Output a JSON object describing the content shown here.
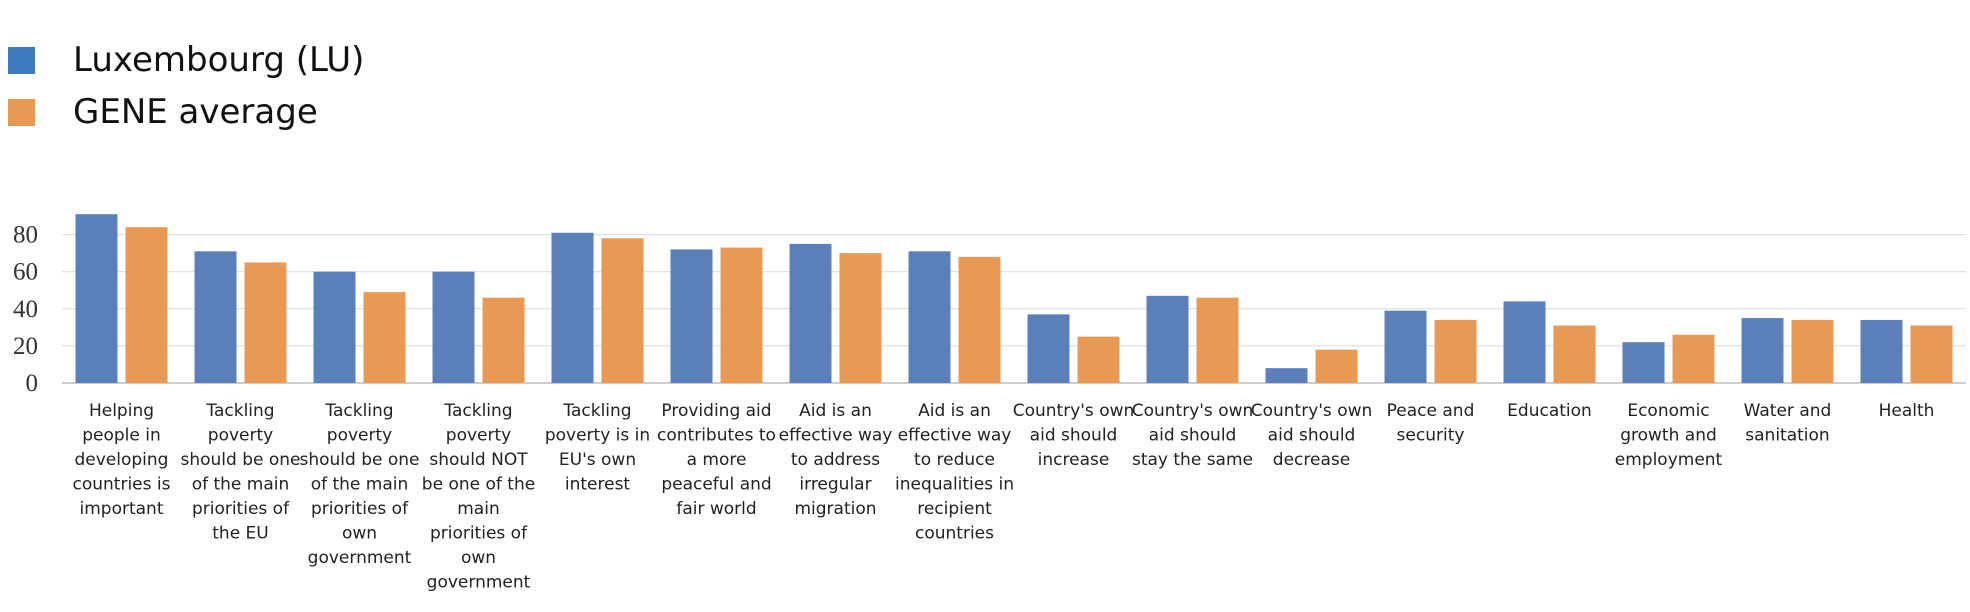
{
  "chart_data": {
    "type": "bar",
    "categories": [
      [
        "Helping",
        "people in",
        "developing",
        "countries is",
        "important"
      ],
      [
        "Tackling",
        "poverty",
        "should be one",
        "of the main",
        "priorities of",
        "the EU"
      ],
      [
        "Tackling",
        "poverty",
        "should be one",
        "of the main",
        "priorities of",
        "own",
        "government"
      ],
      [
        "Tackling",
        "poverty",
        "should NOT",
        "be one of the",
        "main",
        "priorities of",
        "own",
        "government"
      ],
      [
        "Tackling",
        "poverty is in",
        "EU's own",
        "interest"
      ],
      [
        "Providing aid",
        "contributes to",
        "a more",
        "peaceful and",
        "fair world"
      ],
      [
        "Aid is an",
        "effective way",
        "to address",
        "irregular",
        "migration"
      ],
      [
        "Aid is an",
        "effective way",
        "to reduce",
        "inequalities in",
        "recipient",
        "countries"
      ],
      [
        "Country's own",
        "aid should",
        "increase"
      ],
      [
        "Country's own",
        "aid should",
        "stay the same"
      ],
      [
        "Country's own",
        "aid should",
        "decrease"
      ],
      [
        "Peace and",
        "security"
      ],
      [
        "Education"
      ],
      [
        "Economic",
        "growth and",
        "employment"
      ],
      [
        "Water and",
        "sanitation"
      ],
      [
        "Health"
      ]
    ],
    "series": [
      {
        "name": "Luxembourg (LU)",
        "color": "#5b80b9",
        "values": [
          91,
          71,
          60,
          60,
          81,
          72,
          75,
          71,
          37,
          47,
          8,
          39,
          44,
          22,
          35,
          34
        ]
      },
      {
        "name": "GENE average",
        "color": "#e89a54",
        "values": [
          84,
          65,
          49,
          46,
          78,
          73,
          70,
          68,
          25,
          46,
          18,
          34,
          31,
          26,
          34,
          31
        ]
      }
    ],
    "yticks": [
      0,
      20,
      40,
      60,
      80
    ],
    "ylim": [
      0,
      100
    ],
    "grid": true,
    "legend_position": "top-left",
    "title": "",
    "xlabel": "",
    "ylabel": ""
  }
}
